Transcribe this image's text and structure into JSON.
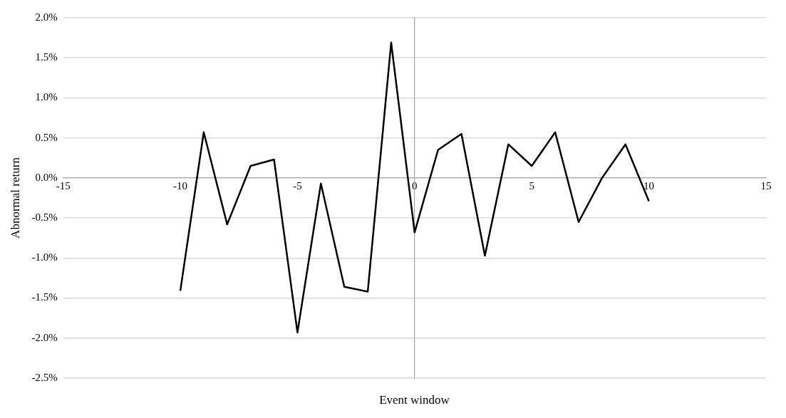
{
  "chart_data": {
    "type": "line",
    "xlabel": "Event window",
    "ylabel": "Abnormal return",
    "x": [
      -10,
      -9,
      -8,
      -7,
      -6,
      -5,
      -4,
      -3,
      -2,
      -1,
      0,
      1,
      2,
      3,
      4,
      5,
      6,
      7,
      8,
      9,
      10
    ],
    "series": [
      {
        "color": "#000000",
        "values": [
          -1.41,
          0.57,
          -0.58,
          0.15,
          0.23,
          -1.93,
          -0.07,
          -1.36,
          -1.42,
          1.69,
          -0.68,
          0.35,
          0.55,
          -0.97,
          0.42,
          0.15,
          0.57,
          -0.55,
          0.0,
          0.42,
          -0.29
        ]
      }
    ],
    "xlim": [
      -15,
      15
    ],
    "xticks": [
      -15,
      -10,
      -5,
      0,
      5,
      10,
      15
    ],
    "ylim": [
      -2.5,
      2.0
    ],
    "yticks": [
      {
        "value": -2.5,
        "label": "-2.5%"
      },
      {
        "value": -2.0,
        "label": "-2.0%"
      },
      {
        "value": -1.5,
        "label": "-1.5%"
      },
      {
        "value": -1.0,
        "label": "-1.0%"
      },
      {
        "value": -0.5,
        "label": "-0.5%"
      },
      {
        "value": 0,
        "label": "0.0%"
      },
      {
        "value": 0.5,
        "label": "0.5%"
      },
      {
        "value": 1.0,
        "label": "1.0%"
      },
      {
        "value": 1.5,
        "label": "1.5%"
      },
      {
        "value": 2.0,
        "label": "2.0%"
      }
    ],
    "grid": "y",
    "legend": false,
    "marker": "none",
    "line_style": "solid"
  }
}
